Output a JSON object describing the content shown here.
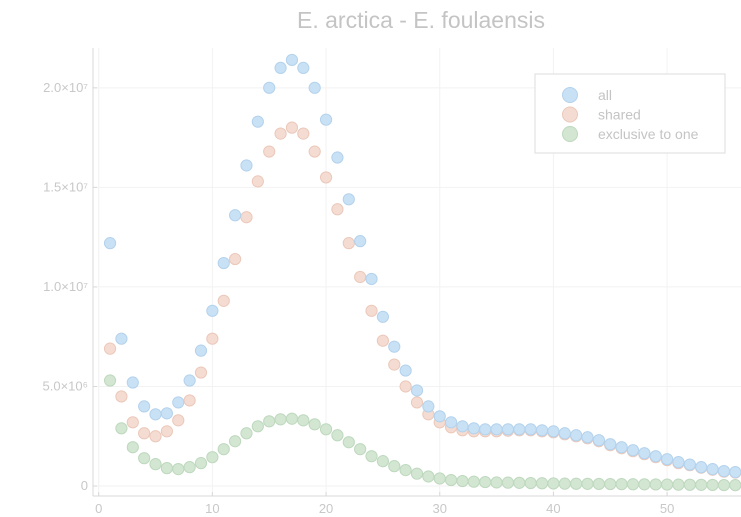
{
  "chart_data": {
    "type": "scatter",
    "title": "E. arctica - E. foulaensis",
    "xlabel": "",
    "ylabel": "",
    "xlim": [
      -0.5,
      56.5
    ],
    "ylim": [
      -500000,
      22000000
    ],
    "x_ticks": [
      0,
      10,
      20,
      30,
      40,
      50
    ],
    "x_tick_labels": [
      "0",
      "10",
      "20",
      "30",
      "40",
      "50"
    ],
    "y_ticks": [
      0,
      5000000,
      10000000,
      15000000,
      20000000
    ],
    "y_tick_labels": [
      "0",
      "5.0×10⁶",
      "1.0×10⁷",
      "1.5×10⁷",
      "2.0×10⁷"
    ],
    "grid": true,
    "legend_position": "top-right",
    "x": [
      1,
      2,
      3,
      4,
      5,
      6,
      7,
      8,
      9,
      10,
      11,
      12,
      13,
      14,
      15,
      16,
      17,
      18,
      19,
      20,
      21,
      22,
      23,
      24,
      25,
      26,
      27,
      28,
      29,
      30,
      31,
      32,
      33,
      34,
      35,
      36,
      37,
      38,
      39,
      40,
      41,
      42,
      43,
      44,
      45,
      46,
      47,
      48,
      49,
      50,
      51,
      52,
      53,
      54,
      55,
      56
    ],
    "series": [
      {
        "name": "all",
        "color": "#c8e1f5",
        "stroke": "#b4d2ec",
        "values": [
          12200000,
          7400000,
          5200000,
          4000000,
          3600000,
          3650000,
          4200000,
          5300000,
          6800000,
          8800000,
          11200000,
          13600000,
          16100000,
          18300000,
          20000000,
          21000000,
          21400000,
          21000000,
          20000000,
          18400000,
          16500000,
          14400000,
          12300000,
          10400000,
          8500000,
          7000000,
          5800000,
          4800000,
          4000000,
          3500000,
          3200000,
          3000000,
          2900000,
          2850000,
          2850000,
          2850000,
          2850000,
          2850000,
          2800000,
          2750000,
          2650000,
          2550000,
          2450000,
          2300000,
          2100000,
          1950000,
          1800000,
          1650000,
          1500000,
          1350000,
          1200000,
          1080000,
          950000,
          850000,
          750000,
          700000
        ]
      },
      {
        "name": "shared",
        "color": "#f5dcd2",
        "stroke": "#ebc8ba",
        "values": [
          6900000,
          4500000,
          3200000,
          2650000,
          2500000,
          2750000,
          3300000,
          4300000,
          5700000,
          7400000,
          9300000,
          11400000,
          13500000,
          15300000,
          16800000,
          17700000,
          18000000,
          17700000,
          16800000,
          15500000,
          13900000,
          12200000,
          10500000,
          8800000,
          7300000,
          6100000,
          5000000,
          4200000,
          3600000,
          3200000,
          2950000,
          2800000,
          2750000,
          2750000,
          2750000,
          2780000,
          2800000,
          2800000,
          2750000,
          2700000,
          2600000,
          2500000,
          2400000,
          2250000,
          2050000,
          1900000,
          1750000,
          1600000,
          1450000,
          1300000,
          1150000,
          1050000,
          920000,
          820000,
          720000,
          680000
        ]
      },
      {
        "name": "exclusive to one",
        "color": "#d2e6d2",
        "stroke": "#bed8be",
        "values": [
          5300000,
          2900000,
          1950000,
          1400000,
          1100000,
          900000,
          850000,
          950000,
          1150000,
          1450000,
          1850000,
          2250000,
          2650000,
          3000000,
          3250000,
          3350000,
          3380000,
          3300000,
          3100000,
          2850000,
          2550000,
          2200000,
          1850000,
          1500000,
          1250000,
          1000000,
          800000,
          620000,
          480000,
          380000,
          300000,
          250000,
          220000,
          200000,
          180000,
          170000,
          160000,
          150000,
          140000,
          130000,
          120000,
          115000,
          110000,
          105000,
          100000,
          95000,
          90000,
          85000,
          80000,
          75000,
          70000,
          65000,
          60000,
          55000,
          50000,
          45000
        ]
      }
    ]
  }
}
